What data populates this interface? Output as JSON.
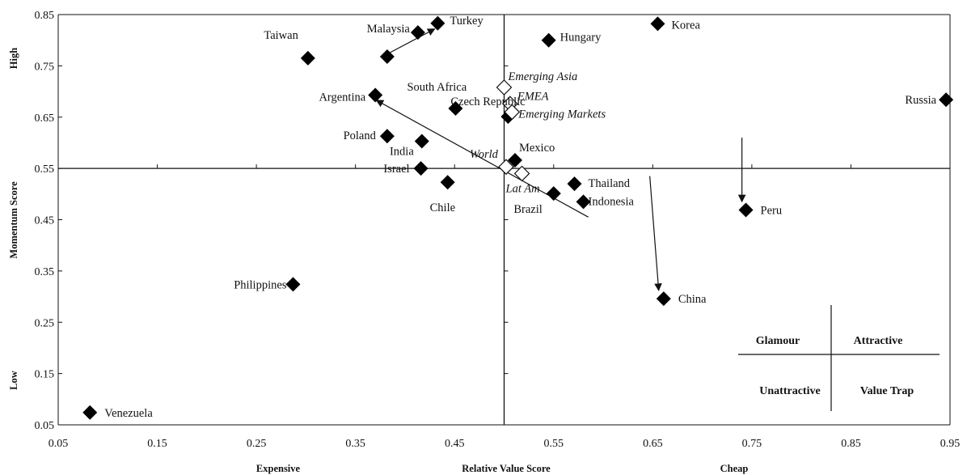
{
  "chart_data": {
    "type": "scatter",
    "xlabel": "Relative Value Score",
    "ylabel": "Momentum Score",
    "x_left_label": "Expensive",
    "x_right_label": "Cheap",
    "y_top_label": "High",
    "y_bottom_label": "Low",
    "xlim": [
      0.05,
      0.95
    ],
    "ylim": [
      0.05,
      0.85
    ],
    "xticks": [
      "0.05",
      "0.15",
      "0.25",
      "0.35",
      "0.45",
      "0.55",
      "0.65",
      "0.75",
      "0.85",
      "0.95"
    ],
    "yticks": [
      "0.05",
      "0.15",
      "0.25",
      "0.35",
      "0.45",
      "0.55",
      "0.65",
      "0.75",
      "0.85"
    ],
    "x_tick_values": [
      0.05,
      0.15,
      0.25,
      0.35,
      0.45,
      0.55,
      0.65,
      0.75,
      0.85,
      0.95
    ],
    "y_tick_values": [
      0.05,
      0.15,
      0.25,
      0.35,
      0.45,
      0.55,
      0.65,
      0.75,
      0.85
    ],
    "crosshair": {
      "x": 0.5,
      "y": 0.55
    },
    "points": [
      {
        "label": "Taiwan",
        "x": 0.302,
        "y": 0.765,
        "marker": "filled"
      },
      {
        "label": "Malaysia",
        "x": 0.413,
        "y": 0.815,
        "marker": "filled"
      },
      {
        "label": "Turkey",
        "x": 0.433,
        "y": 0.833,
        "marker": "filled"
      },
      {
        "label": "",
        "x": 0.382,
        "y": 0.768,
        "marker": "filled"
      },
      {
        "label": "Hungary",
        "x": 0.545,
        "y": 0.8,
        "marker": "filled"
      },
      {
        "label": "Korea",
        "x": 0.655,
        "y": 0.832,
        "marker": "filled"
      },
      {
        "label": "Russia",
        "x": 0.946,
        "y": 0.684,
        "marker": "filled"
      },
      {
        "label": "Argentina",
        "x": 0.37,
        "y": 0.693,
        "marker": "filled"
      },
      {
        "label": "South Africa",
        "x": 0.451,
        "y": 0.667,
        "marker": "filled"
      },
      {
        "label": "Poland",
        "x": 0.382,
        "y": 0.613,
        "marker": "filled"
      },
      {
        "label": "India",
        "x": 0.417,
        "y": 0.603,
        "marker": "filled"
      },
      {
        "label": "Czech Republic",
        "x": 0.504,
        "y": 0.651,
        "marker": "filled"
      },
      {
        "label": "Mexico",
        "x": 0.511,
        "y": 0.566,
        "marker": "filled"
      },
      {
        "label": "Israel",
        "x": 0.416,
        "y": 0.55,
        "marker": "filled"
      },
      {
        "label": "Chile",
        "x": 0.443,
        "y": 0.523,
        "marker": "filled"
      },
      {
        "label": "Brazil",
        "x": 0.55,
        "y": 0.501,
        "marker": "filled"
      },
      {
        "label": "Thailand",
        "x": 0.571,
        "y": 0.52,
        "marker": "filled"
      },
      {
        "label": "Indonesia",
        "x": 0.58,
        "y": 0.485,
        "marker": "filled"
      },
      {
        "label": "Peru",
        "x": 0.744,
        "y": 0.469,
        "marker": "filled"
      },
      {
        "label": "China",
        "x": 0.661,
        "y": 0.296,
        "marker": "filled"
      },
      {
        "label": "Philippines",
        "x": 0.287,
        "y": 0.324,
        "marker": "filled"
      },
      {
        "label": "Venezuela",
        "x": 0.082,
        "y": 0.074,
        "marker": "filled"
      },
      {
        "label": "Emerging Asia",
        "x": 0.5,
        "y": 0.708,
        "marker": "open"
      },
      {
        "label": "EMEA",
        "x": 0.506,
        "y": 0.676,
        "marker": "open"
      },
      {
        "label": "Emerging Markets",
        "x": 0.508,
        "y": 0.66,
        "marker": "open"
      },
      {
        "label": "World",
        "x": 0.502,
        "y": 0.553,
        "marker": "open"
      },
      {
        "label": "Lat Am",
        "x": 0.518,
        "y": 0.54,
        "marker": "open"
      }
    ],
    "arrows": [
      {
        "from": [
          0.384,
          0.775
        ],
        "to": [
          0.43,
          0.822
        ]
      },
      {
        "from": [
          0.585,
          0.455
        ],
        "to": [
          0.371,
          0.683
        ]
      },
      {
        "from": [
          0.74,
          0.61
        ],
        "to": [
          0.74,
          0.485
        ]
      },
      {
        "from": [
          0.647,
          0.535
        ],
        "to": [
          0.656,
          0.312
        ]
      }
    ],
    "legend": {
      "top_left": "Glamour",
      "top_right": "Attractive",
      "bottom_left": "Unattractive",
      "bottom_right": "Value Trap"
    }
  }
}
